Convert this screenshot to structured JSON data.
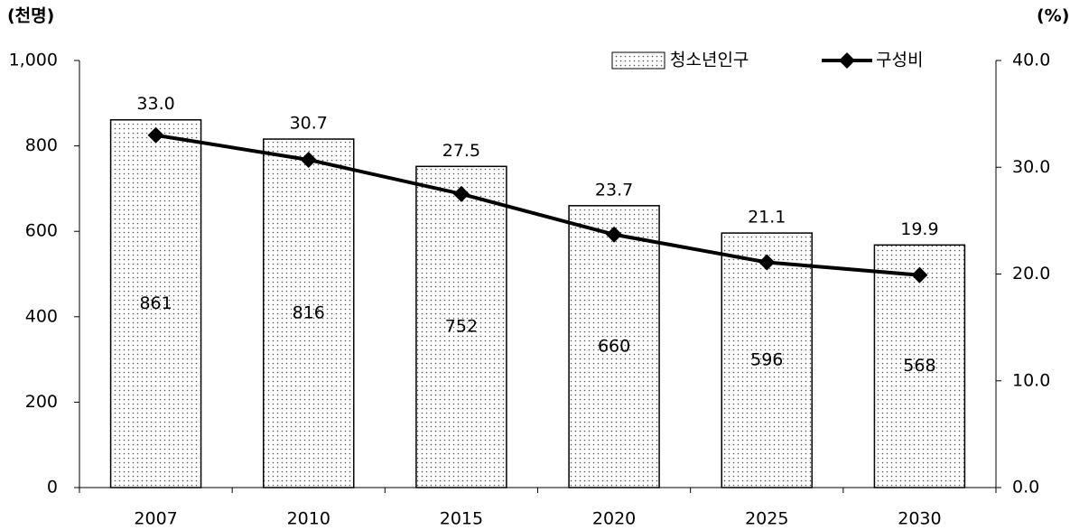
{
  "chart_data": {
    "type": "bar",
    "ylabel": "(천명)",
    "y2label": "(%)",
    "categories": [
      "2007",
      "2010",
      "2015",
      "2020",
      "2025",
      "2030"
    ],
    "series": [
      {
        "name": "청소년인구",
        "color": "#000000",
        "values": [
          861,
          816,
          752,
          660,
          596,
          568
        ]
      },
      {
        "name": "구성비",
        "type": "line",
        "axis": "y2",
        "color": "#000000",
        "values": [
          33.0,
          30.7,
          27.5,
          23.7,
          21.1,
          19.9
        ],
        "value_labels": [
          "33.0",
          "30.7",
          "27.5",
          "23.7",
          "21.1",
          "19.9"
        ]
      }
    ],
    "ylim": [
      0,
      1000
    ],
    "yticks": [
      0,
      200,
      400,
      600,
      800,
      {
        "value": 1000,
        "label": "1,000"
      }
    ],
    "y2lim": [
      0,
      40
    ],
    "y2ticks": [
      {
        "value": 0,
        "label": "0.0"
      },
      {
        "value": 10,
        "label": "10.0"
      },
      {
        "value": 20,
        "label": "20.0"
      },
      {
        "value": 30,
        "label": "30.0"
      },
      {
        "value": 40,
        "label": "40.0"
      }
    ],
    "legend": "top-right",
    "grid": false
  }
}
